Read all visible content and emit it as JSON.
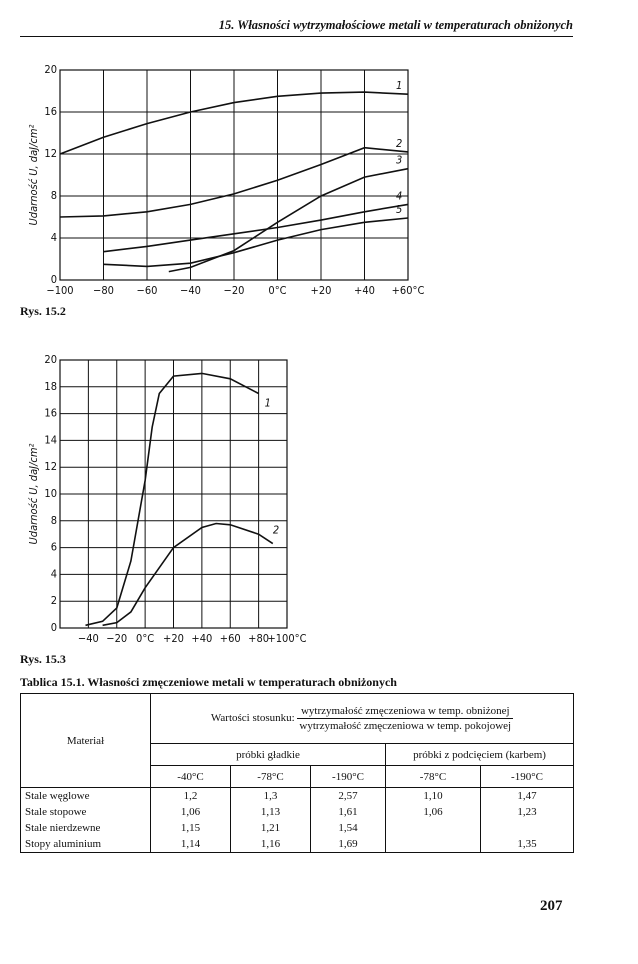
{
  "header": {
    "title": "15. Własności wytrzymałościowe metali w temperaturach obniżonych"
  },
  "chart_data": [
    {
      "type": "line",
      "caption": "Rys. 15.2",
      "ylabel": "Udarność U, daJ/cm²",
      "color": "#111111",
      "grid": true,
      "xlim": [
        -100,
        60
      ],
      "ylim": [
        0,
        20
      ],
      "xticks": [
        {
          "value": -100,
          "label": "−100"
        },
        {
          "value": -80,
          "label": "−80"
        },
        {
          "value": -60,
          "label": "−60"
        },
        {
          "value": -40,
          "label": "−40"
        },
        {
          "value": -20,
          "label": "−20"
        },
        {
          "value": 0,
          "label": "0°C"
        },
        {
          "value": 20,
          "label": "+20"
        },
        {
          "value": 40,
          "label": "+40"
        },
        {
          "value": 60,
          "label": "+60°C"
        }
      ],
      "yticks": [
        0,
        4,
        8,
        12,
        16,
        20
      ],
      "series": [
        {
          "name": "1",
          "x": [
            -100,
            -80,
            -60,
            -40,
            -20,
            0,
            20,
            40,
            60
          ],
          "values": [
            12,
            13.6,
            14.9,
            16,
            16.9,
            17.5,
            17.8,
            17.9,
            17.7
          ]
        },
        {
          "name": "2",
          "x": [
            -100,
            -80,
            -60,
            -40,
            -20,
            0,
            20,
            40,
            60
          ],
          "values": [
            6,
            6.1,
            6.5,
            7.2,
            8.2,
            9.5,
            11,
            12.6,
            12.2
          ]
        },
        {
          "name": "3",
          "x": [
            -50,
            -40,
            -20,
            0,
            20,
            40,
            60
          ],
          "values": [
            0.8,
            1.2,
            2.8,
            5.5,
            8,
            9.8,
            10.6
          ]
        },
        {
          "name": "4",
          "x": [
            -80,
            -60,
            -40,
            -20,
            0,
            20,
            40,
            60
          ],
          "values": [
            2.7,
            3.2,
            3.8,
            4.4,
            5,
            5.7,
            6.5,
            7.2
          ]
        },
        {
          "name": "5",
          "x": [
            -80,
            -60,
            -40,
            -20,
            0,
            20,
            40,
            60
          ],
          "values": [
            1.5,
            1.3,
            1.6,
            2.6,
            3.8,
            4.8,
            5.5,
            5.9
          ]
        }
      ]
    },
    {
      "type": "line",
      "caption": "Rys. 15.3",
      "ylabel": "Udarność U, daJ/cm²",
      "color": "#111111",
      "grid": true,
      "xlim": [
        -60,
        100
      ],
      "ylim": [
        0,
        20
      ],
      "xticks": [
        {
          "value": -40,
          "label": "−40"
        },
        {
          "value": -20,
          "label": "−20"
        },
        {
          "value": 0,
          "label": "0°C"
        },
        {
          "value": 20,
          "label": "+20"
        },
        {
          "value": 40,
          "label": "+40"
        },
        {
          "value": 60,
          "label": "+60"
        },
        {
          "value": 80,
          "label": "+80"
        },
        {
          "value": 100,
          "label": "+100°C"
        }
      ],
      "yticks": [
        0,
        2,
        4,
        6,
        8,
        10,
        12,
        14,
        16,
        18,
        20
      ],
      "series": [
        {
          "name": "1",
          "x": [
            -42,
            -30,
            -20,
            -10,
            0,
            5,
            10,
            20,
            40,
            60,
            80
          ],
          "values": [
            0.2,
            0.5,
            1.5,
            5,
            11,
            15,
            17.5,
            18.8,
            19,
            18.6,
            17.5
          ]
        },
        {
          "name": "2",
          "x": [
            -30,
            -20,
            -10,
            0,
            20,
            40,
            50,
            60,
            80,
            90
          ],
          "values": [
            0.2,
            0.4,
            1.2,
            3,
            6,
            7.5,
            7.8,
            7.7,
            7,
            6.3
          ]
        }
      ]
    }
  ],
  "table": {
    "caption": "Tablica 15.1. Własności zmęczeniowe metali w temperaturach obniżonych",
    "material_header": "Materiał",
    "ratio_label": "Wartości stosunku:",
    "numerator": "wytrzymałość zmęczeniowa w temp. obniżonej",
    "denominator": "wytrzymałość zmęczeniowa w temp. pokojowej",
    "groups": [
      "próbki gładkie",
      "próbki z podcięciem (karbem)"
    ],
    "temperatures": [
      "-40°C",
      "-78°C",
      "-190°C",
      "-78°C",
      "-190°C"
    ],
    "rows": [
      [
        "Stale węglowe",
        "1,2",
        "1,3",
        "2,57",
        "1,10",
        "1,47"
      ],
      [
        "Stale stopowe",
        "1,06",
        "1,13",
        "1,61",
        "1,06",
        "1,23"
      ],
      [
        "Stale nierdzewne",
        "1,15",
        "1,21",
        "1,54",
        null,
        null
      ],
      [
        "Stopy aluminium",
        "1,14",
        "1,16",
        "1,69",
        null,
        "1,35"
      ]
    ]
  },
  "page_number": "207"
}
